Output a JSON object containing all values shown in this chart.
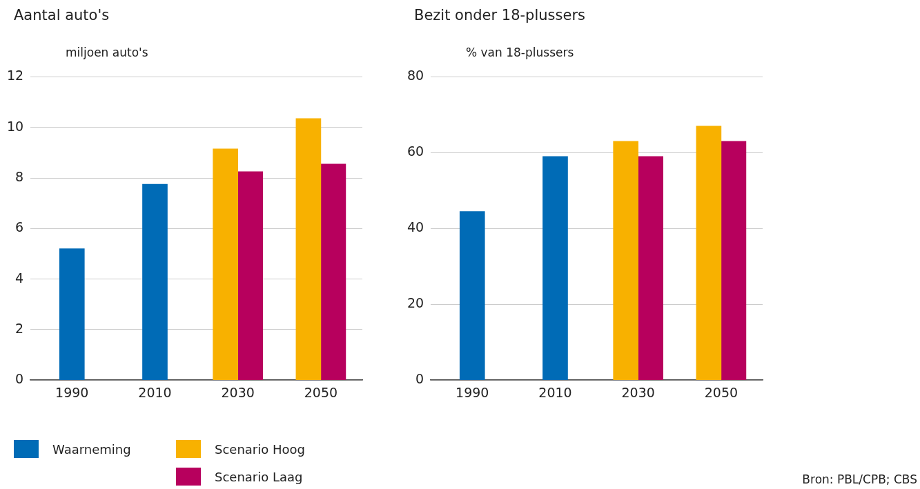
{
  "chart_data": [
    {
      "type": "bar",
      "title": "Aantal auto's",
      "ylabel": "miljoen auto's",
      "categories": [
        "1990",
        "2010",
        "2030",
        "2050"
      ],
      "series": [
        {
          "name": "Waarneming",
          "color": "#006bb6",
          "values": [
            5.2,
            7.75,
            null,
            null
          ]
        },
        {
          "name": "Scenario Hoog",
          "color": "#f8b100",
          "values": [
            null,
            null,
            9.15,
            10.35
          ]
        },
        {
          "name": "Scenario Laag",
          "color": "#b7005d",
          "values": [
            null,
            null,
            8.25,
            8.55
          ]
        }
      ],
      "ylim": [
        0,
        12
      ],
      "yticks": [
        0,
        2,
        4,
        6,
        8,
        10,
        12
      ],
      "grid": "y",
      "legend": "bottom left"
    },
    {
      "type": "bar",
      "title": "Bezit onder 18-plussers",
      "ylabel": "% van 18-plussers",
      "categories": [
        "1990",
        "2010",
        "2030",
        "2050"
      ],
      "series": [
        {
          "name": "Waarneming",
          "color": "#006bb6",
          "values": [
            44.5,
            59,
            null,
            null
          ]
        },
        {
          "name": "Scenario Hoog",
          "color": "#f8b100",
          "values": [
            null,
            null,
            63,
            67
          ]
        },
        {
          "name": "Scenario Laag",
          "color": "#b7005d",
          "values": [
            null,
            null,
            59,
            63
          ]
        }
      ],
      "ylim": [
        0,
        80
      ],
      "yticks": [
        0,
        20,
        40,
        60,
        80
      ],
      "grid": "y",
      "legend": "bottom left",
      "annotations": [
        "Bron: PBL/CPB; CBS"
      ]
    }
  ]
}
